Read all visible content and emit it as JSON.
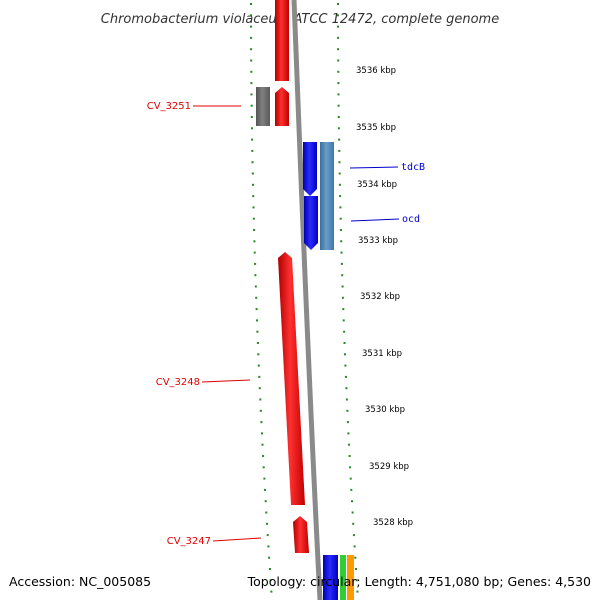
{
  "title": "Chromobacterium violaceum ATCC 12472, complete genome",
  "footer": {
    "accession": "Accession: NC_005085",
    "summary": "Topology: circular; Length: 4,751,080 bp; Genes: 4,530"
  },
  "scale_labels": [
    "3536 kbp",
    "3535 kbp",
    "3534 kbp",
    "3533 kbp",
    "3532 kbp",
    "3531 kbp",
    "3530 kbp",
    "3529 kbp",
    "3528 kbp"
  ],
  "genes": [
    {
      "name": "CV_3251",
      "color": "#e00000"
    },
    {
      "name": "tdcB",
      "color": "#0000cc"
    },
    {
      "name": "ocd",
      "color": "#0000cc"
    },
    {
      "name": "CV_3248",
      "color": "#e00000"
    },
    {
      "name": "CV_3247",
      "color": "#e00000"
    }
  ],
  "colors": {
    "forward_feature": "#ff0000",
    "reverse_feature": "#0000ff",
    "reverse_feature_light": "#4682b4",
    "other_feature": "#666666",
    "backbone": "#888888",
    "ticks": "#228b22"
  }
}
